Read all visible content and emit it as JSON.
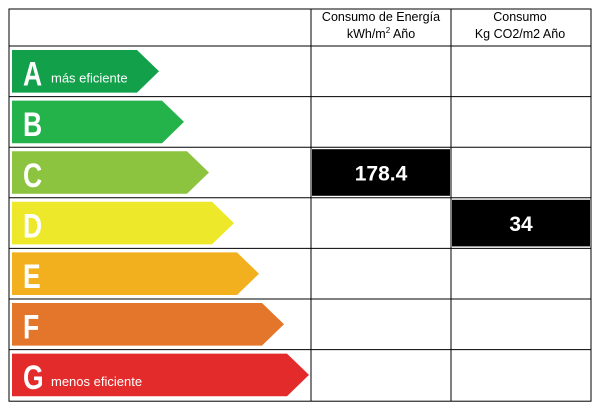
{
  "table": {
    "col1_header_line1": "Consumo de Energía",
    "col1_header_line2": "kWh/m",
    "col1_header_sup": "2",
    "col1_header_line2_tail": " Año",
    "col2_header_line1": "Consumo",
    "col2_header_line2": "Kg CO2/m2 Año"
  },
  "ratings": [
    {
      "letter": "A",
      "caption": "más eficiente",
      "color": "#12a04a"
    },
    {
      "letter": "B",
      "caption": "",
      "color": "#24b34b"
    },
    {
      "letter": "C",
      "caption": "",
      "color": "#8cc43f"
    },
    {
      "letter": "D",
      "caption": "",
      "color": "#eee82a"
    },
    {
      "letter": "E",
      "caption": "",
      "color": "#f2b01e"
    },
    {
      "letter": "F",
      "caption": "",
      "color": "#e3762a"
    },
    {
      "letter": "G",
      "caption": "menos eficiente",
      "color": "#e42b2b"
    }
  ],
  "values": {
    "energy": {
      "rating": "C",
      "value": "178.4"
    },
    "co2": {
      "rating": "D",
      "value": "34"
    }
  },
  "colors": {
    "border": "#000000",
    "value_box": "#000000",
    "value_text": "#ffffff"
  }
}
